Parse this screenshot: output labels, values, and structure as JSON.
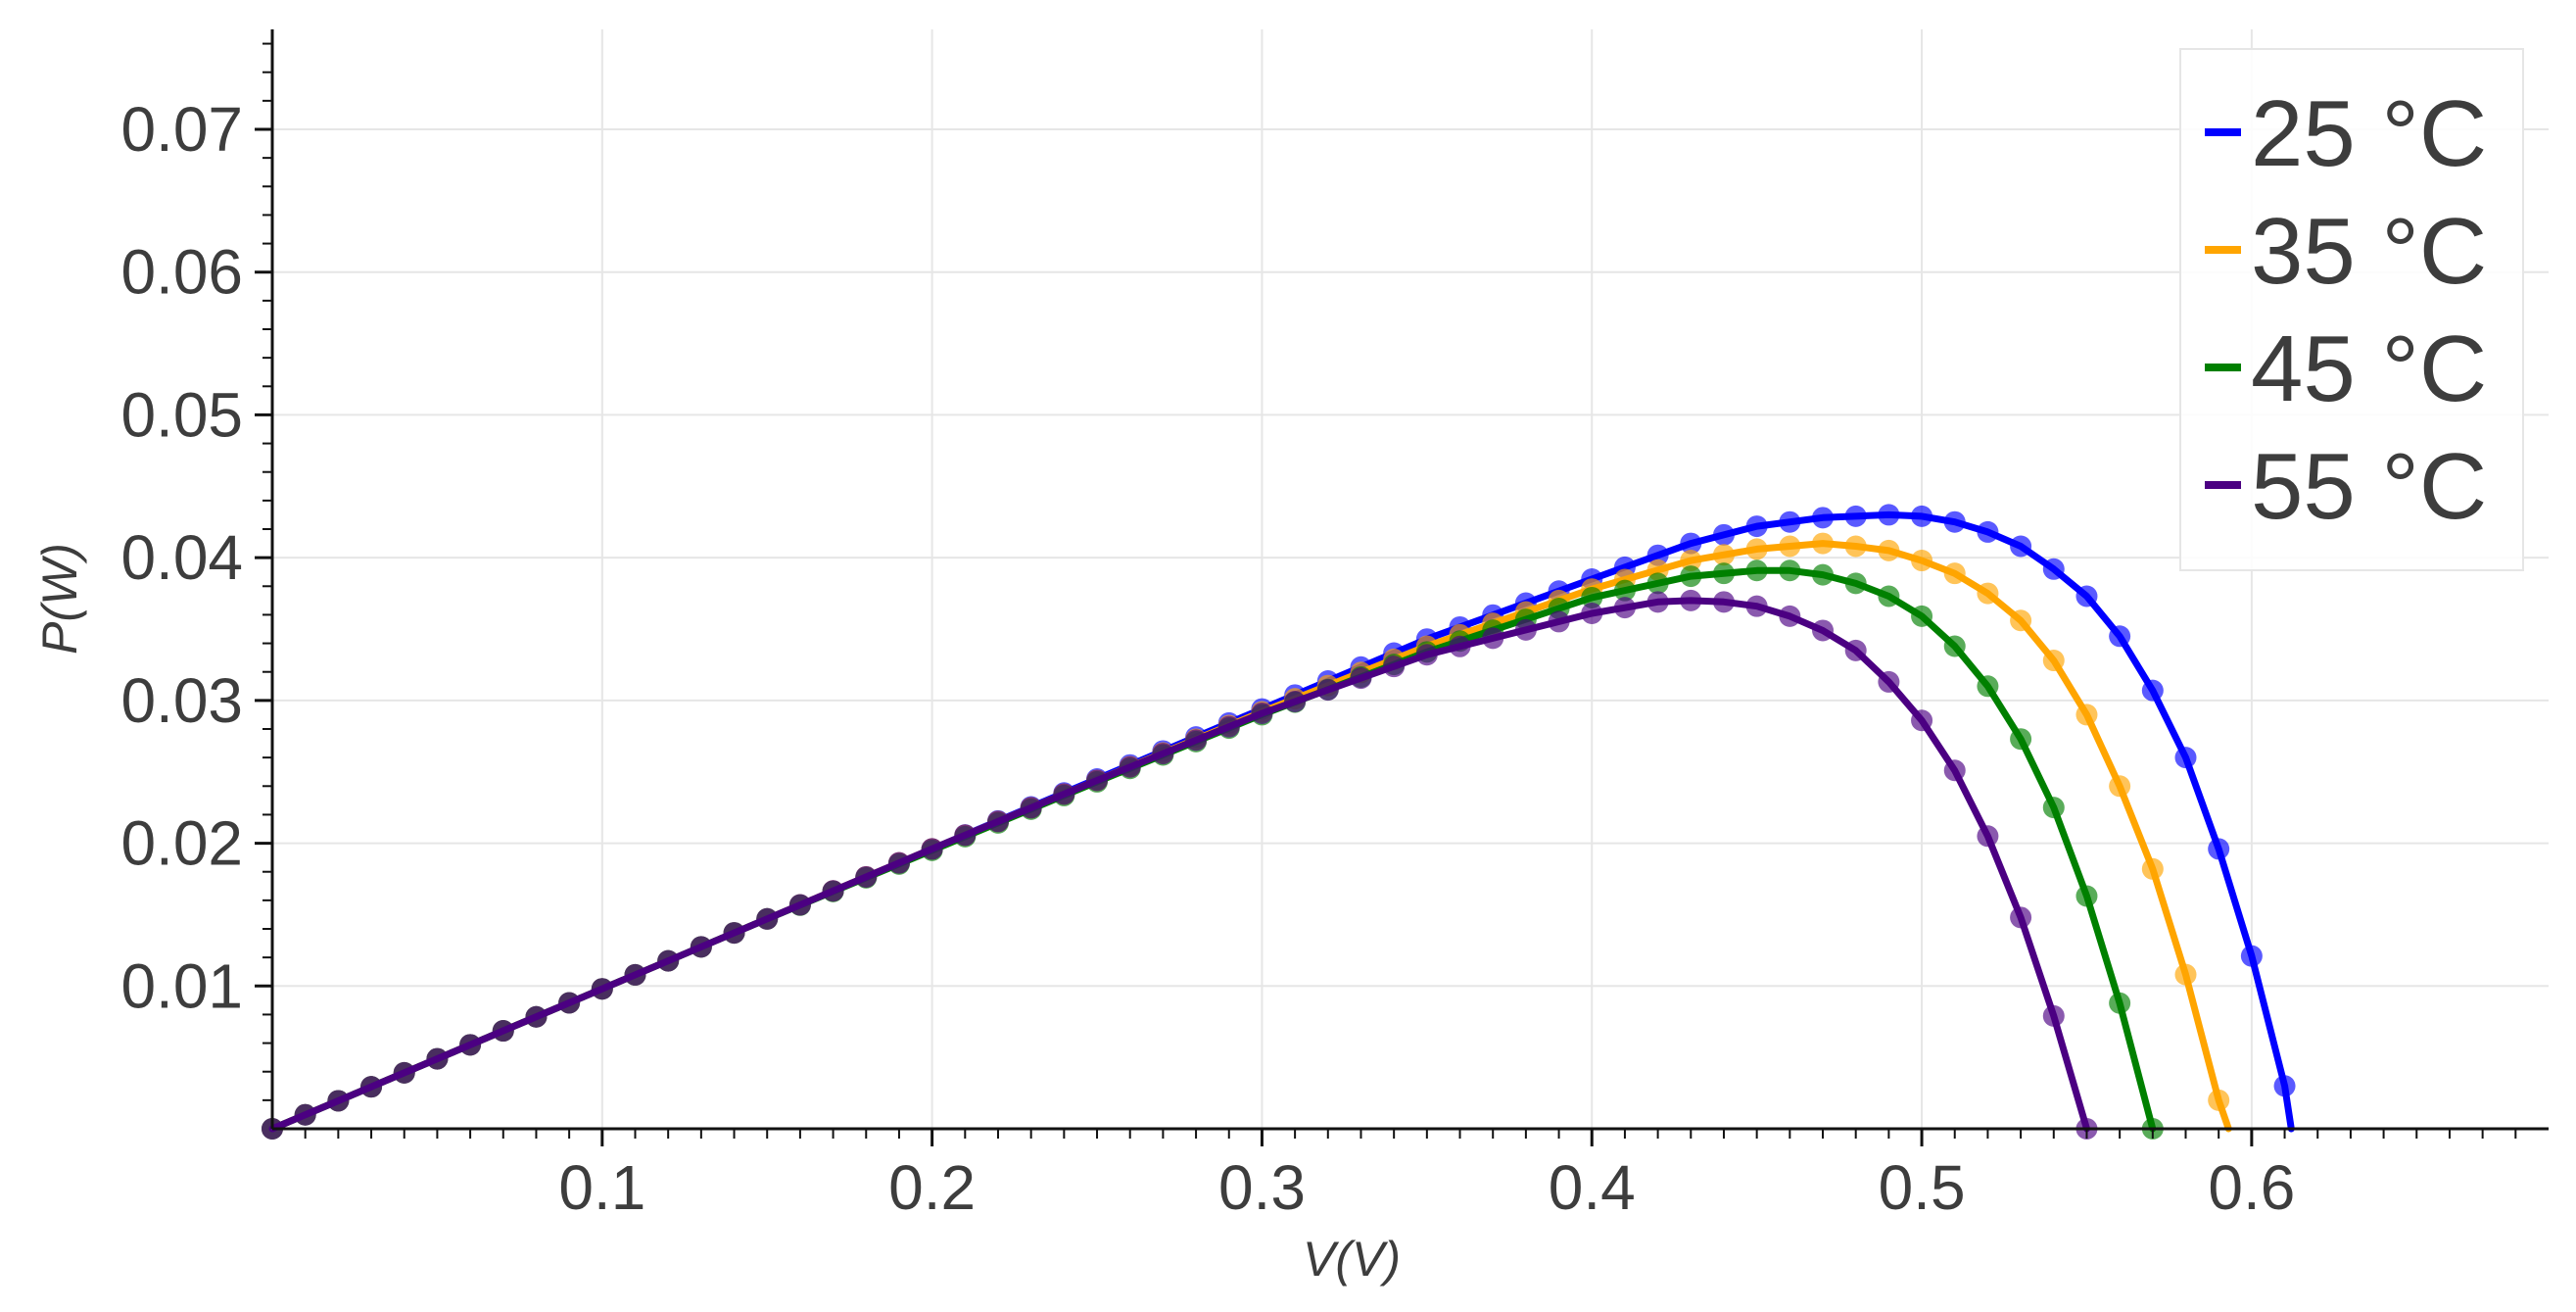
{
  "chart_data": {
    "type": "line",
    "title": "",
    "xlabel": "V(V)",
    "ylabel": "P(W)",
    "xlim": [
      0.0,
      0.69
    ],
    "ylim": [
      0.0,
      0.077
    ],
    "grid": true,
    "legend_position": "top-right",
    "x_ticks": [
      0.1,
      0.2,
      0.3,
      0.4,
      0.5,
      0.6
    ],
    "x_tick_labels": [
      "0.1",
      "0.2",
      "0.3",
      "0.4",
      "0.5",
      "0.6"
    ],
    "y_ticks": [
      0.01,
      0.02,
      0.03,
      0.04,
      0.05,
      0.06,
      0.07
    ],
    "y_tick_labels": [
      "0.01",
      "0.02",
      "0.03",
      "0.04",
      "0.05",
      "0.06",
      "0.07"
    ],
    "series": [
      {
        "name": "25 °C",
        "color": "#0000ff",
        "x": [
          0.0,
          0.05,
          0.1,
          0.15,
          0.2,
          0.25,
          0.3,
          0.35,
          0.4,
          0.43,
          0.45,
          0.47,
          0.49,
          0.5,
          0.51,
          0.52,
          0.53,
          0.54,
          0.55,
          0.56,
          0.57,
          0.58,
          0.59,
          0.6,
          0.61,
          0.612
        ],
        "y": [
          0.0,
          0.0049,
          0.0098,
          0.0147,
          0.0196,
          0.0245,
          0.0294,
          0.0343,
          0.0385,
          0.041,
          0.0422,
          0.0428,
          0.043,
          0.0429,
          0.0425,
          0.0418,
          0.0408,
          0.0392,
          0.0373,
          0.0345,
          0.0307,
          0.026,
          0.0196,
          0.0121,
          0.003,
          0.0
        ]
      },
      {
        "name": "35 °C",
        "color": "#ffa500",
        "x": [
          0.0,
          0.05,
          0.1,
          0.15,
          0.2,
          0.25,
          0.3,
          0.35,
          0.4,
          0.43,
          0.45,
          0.47,
          0.48,
          0.49,
          0.5,
          0.51,
          0.52,
          0.53,
          0.54,
          0.55,
          0.56,
          0.57,
          0.58,
          0.59,
          0.593
        ],
        "y": [
          0.0,
          0.0049,
          0.0098,
          0.0147,
          0.0196,
          0.0244,
          0.0292,
          0.0338,
          0.0378,
          0.0398,
          0.0406,
          0.041,
          0.0408,
          0.0405,
          0.0398,
          0.0389,
          0.0375,
          0.0356,
          0.0328,
          0.029,
          0.024,
          0.0182,
          0.0108,
          0.002,
          0.0
        ]
      },
      {
        "name": "45 °C",
        "color": "#008000",
        "x": [
          0.0,
          0.05,
          0.1,
          0.15,
          0.2,
          0.25,
          0.3,
          0.35,
          0.4,
          0.43,
          0.45,
          0.46,
          0.47,
          0.48,
          0.49,
          0.5,
          0.51,
          0.52,
          0.53,
          0.54,
          0.55,
          0.56,
          0.57
        ],
        "y": [
          0.0,
          0.0049,
          0.0098,
          0.0147,
          0.0195,
          0.0243,
          0.029,
          0.0334,
          0.0372,
          0.0387,
          0.0391,
          0.0391,
          0.0388,
          0.0382,
          0.0373,
          0.0359,
          0.0338,
          0.031,
          0.0273,
          0.0225,
          0.0163,
          0.0088,
          0.0
        ]
      },
      {
        "name": "55 °C",
        "color": "#4b0082",
        "x": [
          0.0,
          0.05,
          0.1,
          0.15,
          0.2,
          0.25,
          0.3,
          0.35,
          0.4,
          0.42,
          0.43,
          0.44,
          0.45,
          0.46,
          0.47,
          0.48,
          0.49,
          0.5,
          0.51,
          0.52,
          0.53,
          0.54,
          0.55
        ],
        "y": [
          0.0,
          0.0049,
          0.0098,
          0.0147,
          0.0196,
          0.0244,
          0.0291,
          0.0332,
          0.0361,
          0.0369,
          0.037,
          0.0369,
          0.0366,
          0.0359,
          0.0349,
          0.0335,
          0.0313,
          0.0286,
          0.0251,
          0.0205,
          0.0148,
          0.0079,
          0.0
        ]
      }
    ]
  }
}
